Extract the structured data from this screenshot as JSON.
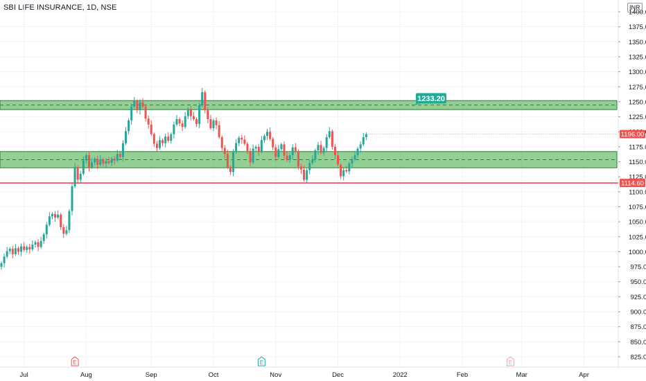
{
  "header": {
    "title": "SBI LIFE INSURANCE, 1D, NSE",
    "currency": "INR"
  },
  "colors": {
    "up": "#26a69a",
    "down": "#ef5350",
    "zone_fill": "#4caf50",
    "zone_border": "#2e7d32",
    "support_line": "#f23645",
    "callout": "#22ab94",
    "grid": "#f0f3fa",
    "axis_text": "#131722"
  },
  "chart_data": {
    "type": "candlestick",
    "y_axis": {
      "min": 812.5,
      "max": 1400,
      "ticks": [
        825,
        850,
        875,
        900,
        925,
        950,
        975,
        1000,
        1025,
        1050,
        1075,
        1100,
        1125,
        1150,
        1175,
        1200,
        1225,
        1250,
        1275,
        1300,
        1325,
        1350,
        1375,
        1400
      ],
      "tick_labels": [
        "825.00",
        "850.00",
        "875.00",
        "900.00",
        "925.00",
        "950.00",
        "975.00",
        "1000.00",
        "1025.00",
        "1050.00",
        "1075.00",
        "1100.00",
        "1125.00",
        "1150.00",
        "1175.00",
        "1200.00",
        "1225.00",
        "1250.00",
        "1275.00",
        "1300.00",
        "1325.00",
        "1350.00",
        "1375.00",
        "1400.00"
      ]
    },
    "x_axis": {
      "labels": [
        "Jul",
        "Aug",
        "Sep",
        "Oct",
        "Nov",
        "Dec",
        "2022",
        "Feb",
        "Mar",
        "Apr"
      ],
      "label_index": [
        8,
        30,
        53,
        75,
        97,
        119,
        141,
        163,
        184,
        206
      ]
    },
    "closes": [
      981,
      992,
      1001,
      1005,
      996,
      1006,
      1000,
      1009,
      1003,
      1008,
      1004,
      1012,
      1016,
      1008,
      1018,
      1029,
      1045,
      1059,
      1063,
      1057,
      1062,
      1041,
      1030,
      1036,
      1068,
      1109,
      1141,
      1120,
      1130,
      1152,
      1161,
      1141,
      1149,
      1155,
      1145,
      1154,
      1147,
      1151,
      1148,
      1155,
      1152,
      1163,
      1158,
      1181,
      1201,
      1219,
      1242,
      1251,
      1236,
      1249,
      1242,
      1222,
      1212,
      1196,
      1180,
      1173,
      1186,
      1181,
      1192,
      1185,
      1196,
      1212,
      1221,
      1214,
      1208,
      1226,
      1238,
      1226,
      1221,
      1213,
      1244,
      1266,
      1236,
      1221,
      1206,
      1219,
      1211,
      1191,
      1173,
      1163,
      1141,
      1133,
      1166,
      1181,
      1190,
      1187,
      1180,
      1168,
      1149,
      1172,
      1175,
      1167,
      1186,
      1193,
      1200,
      1188,
      1174,
      1158,
      1171,
      1179,
      1160,
      1153,
      1161,
      1174,
      1168,
      1142,
      1137,
      1120,
      1136,
      1148,
      1154,
      1169,
      1178,
      1165,
      1173,
      1191,
      1201,
      1175,
      1161,
      1145,
      1126,
      1136,
      1134,
      1147,
      1154,
      1161,
      1172,
      1179,
      1191,
      1196
    ],
    "resistance_zone": [
      1237,
      1252
    ],
    "support_zone": [
      1140,
      1167
    ],
    "support_line": 1114.6,
    "callout_label": "1233.20",
    "price_labels": {
      "current": "1196.00",
      "support": "1114.60"
    },
    "events": [
      {
        "letter": "E",
        "index": 26,
        "color": "#ef5350"
      },
      {
        "letter": "E",
        "index": 92,
        "color": "#26a69a"
      },
      {
        "letter": "E",
        "index": 180,
        "color": "#f4a0a0"
      }
    ]
  }
}
